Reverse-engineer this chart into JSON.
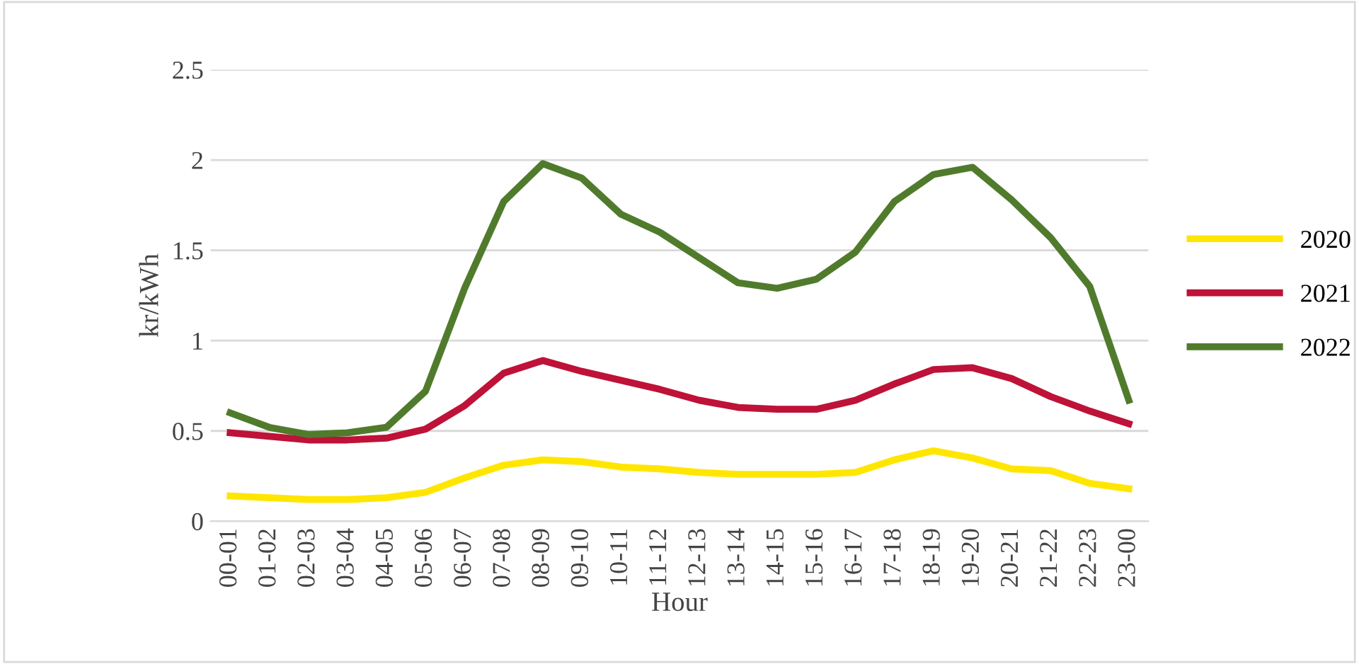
{
  "chart_data": {
    "type": "line",
    "xlabel": "Hour",
    "ylabel": "kr/kWh",
    "categories": [
      "00-01",
      "01-02",
      "02-03",
      "03-04",
      "04-05",
      "05-06",
      "06-07",
      "07-08",
      "08-09",
      "09-10",
      "10-11",
      "11-12",
      "12-13",
      "13-14",
      "14-15",
      "15-16",
      "16-17",
      "17-18",
      "18-19",
      "19-20",
      "20-21",
      "21-22",
      "22-23",
      "23-00"
    ],
    "series": [
      {
        "name": "2020",
        "color": "#ffe600",
        "values": [
          0.14,
          0.13,
          0.12,
          0.12,
          0.13,
          0.16,
          0.24,
          0.31,
          0.34,
          0.33,
          0.3,
          0.29,
          0.27,
          0.26,
          0.26,
          0.26,
          0.27,
          0.34,
          0.39,
          0.35,
          0.29,
          0.28,
          0.21,
          0.18
        ]
      },
      {
        "name": "2021",
        "color": "#be1238",
        "values": [
          0.49,
          0.47,
          0.45,
          0.45,
          0.46,
          0.51,
          0.64,
          0.82,
          0.89,
          0.83,
          0.78,
          0.73,
          0.67,
          0.63,
          0.62,
          0.62,
          0.67,
          0.76,
          0.84,
          0.85,
          0.79,
          0.69,
          0.61,
          0.54
        ]
      },
      {
        "name": "2022",
        "color": "#507b2c",
        "values": [
          0.6,
          0.52,
          0.48,
          0.49,
          0.52,
          0.72,
          1.29,
          1.77,
          1.98,
          1.9,
          1.7,
          1.6,
          1.46,
          1.32,
          1.29,
          1.34,
          1.49,
          1.77,
          1.92,
          1.96,
          1.78,
          1.57,
          1.3,
          0.67
        ]
      }
    ],
    "ylim": [
      0,
      2.5
    ],
    "yticks": [
      0,
      0.5,
      1,
      1.5,
      2,
      2.5
    ],
    "grid": "y",
    "legend": "right",
    "marker": "none",
    "line_style": "solid"
  }
}
